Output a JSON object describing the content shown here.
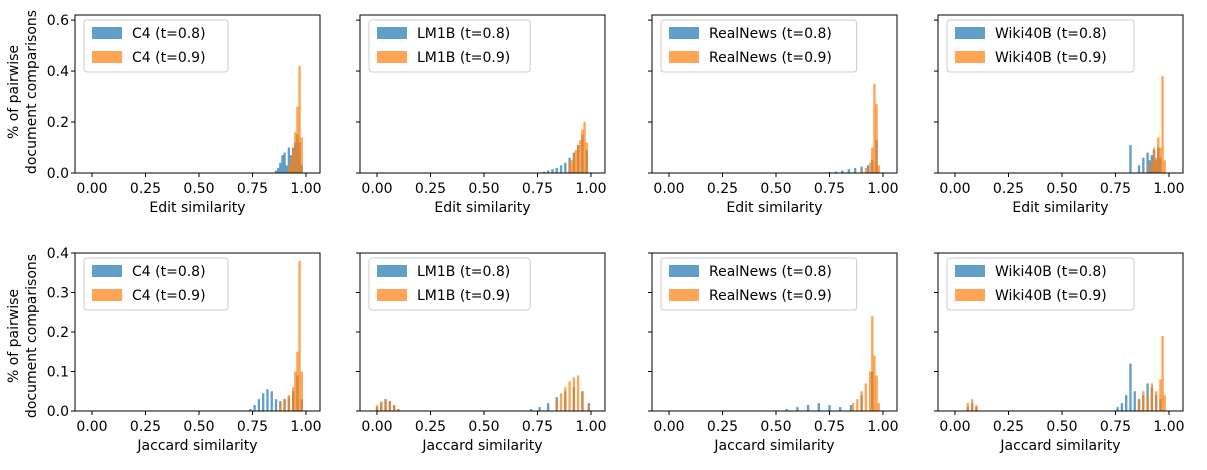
{
  "figure": {
    "ylabel_lines": [
      "% of pairwise",
      "document comparisons"
    ]
  },
  "colors": {
    "t08": "#1f77b4",
    "t09": "#ff7f0e"
  },
  "chart_data": [
    {
      "type": "bar",
      "row": 0,
      "col": 0,
      "xlabel": "Edit similarity",
      "ylabel": "% of pairwise document comparisons",
      "xlim": [
        0,
        1
      ],
      "ylim": [
        0,
        0.62
      ],
      "xticks": [
        "0.00",
        "0.25",
        "0.50",
        "0.75",
        "1.00"
      ],
      "yticks": [
        "0.0",
        "0.2",
        "0.4",
        "0.6"
      ],
      "legend_position": "top-left",
      "series": [
        {
          "name": "C4 (t=0.8)",
          "x": [
            0.86,
            0.87,
            0.88,
            0.89,
            0.9,
            0.91,
            0.92,
            0.93,
            0.94,
            0.95,
            0.96,
            0.97,
            0.98
          ],
          "values": [
            0.01,
            0.02,
            0.04,
            0.07,
            0.08,
            0.03,
            0.1,
            0.07,
            0.1,
            0.12,
            0.15,
            0.12,
            0.03
          ]
        },
        {
          "name": "C4 (t=0.9)",
          "x": [
            0.92,
            0.93,
            0.94,
            0.95,
            0.96,
            0.97,
            0.98
          ],
          "values": [
            0.03,
            0.06,
            0.1,
            0.16,
            0.26,
            0.42,
            0.14
          ]
        }
      ]
    },
    {
      "type": "bar",
      "row": 0,
      "col": 1,
      "xlabel": "Edit similarity",
      "xlim": [
        0,
        1
      ],
      "ylim": [
        0,
        0.62
      ],
      "xticks": [
        "0.00",
        "0.25",
        "0.50",
        "0.75",
        "1.00"
      ],
      "yticks": [
        "0.0",
        "0.2",
        "0.4",
        "0.6"
      ],
      "legend_position": "top-left",
      "series": [
        {
          "name": "LM1B (t=0.8)",
          "x": [
            0.78,
            0.8,
            0.82,
            0.84,
            0.86,
            0.88,
            0.9,
            0.92,
            0.94,
            0.96,
            0.98
          ],
          "values": [
            0.005,
            0.01,
            0.015,
            0.02,
            0.03,
            0.04,
            0.06,
            0.08,
            0.11,
            0.15,
            0.09
          ]
        },
        {
          "name": "LM1B (t=0.9)",
          "x": [
            0.9,
            0.91,
            0.92,
            0.93,
            0.94,
            0.95,
            0.96,
            0.97,
            0.98
          ],
          "values": [
            0.04,
            0.05,
            0.07,
            0.09,
            0.11,
            0.13,
            0.17,
            0.2,
            0.12
          ]
        }
      ]
    },
    {
      "type": "bar",
      "row": 0,
      "col": 2,
      "xlabel": "Edit similarity",
      "xlim": [
        0,
        1
      ],
      "ylim": [
        0,
        0.62
      ],
      "xticks": [
        "0.00",
        "0.25",
        "0.50",
        "0.75",
        "1.00"
      ],
      "yticks": [
        "0.0",
        "0.2",
        "0.4",
        "0.6"
      ],
      "legend_position": "top-left",
      "series": [
        {
          "name": "RealNews (t=0.8)",
          "x": [
            0.72,
            0.75,
            0.78,
            0.81,
            0.84,
            0.87,
            0.9,
            0.93,
            0.95,
            0.97
          ],
          "values": [
            0.002,
            0.004,
            0.006,
            0.01,
            0.015,
            0.02,
            0.025,
            0.03,
            0.05,
            0.13
          ]
        },
        {
          "name": "RealNews (t=0.9)",
          "x": [
            0.9,
            0.92,
            0.94,
            0.95,
            0.96,
            0.97,
            0.98
          ],
          "values": [
            0.01,
            0.02,
            0.04,
            0.1,
            0.35,
            0.27,
            0.03
          ]
        }
      ]
    },
    {
      "type": "bar",
      "row": 0,
      "col": 3,
      "xlabel": "Edit similarity",
      "xlim": [
        0,
        1
      ],
      "ylim": [
        0,
        0.62
      ],
      "xticks": [
        "0.00",
        "0.25",
        "0.50",
        "0.75",
        "1.00"
      ],
      "yticks": [
        "0.0",
        "0.2",
        "0.4",
        "0.6"
      ],
      "legend_position": "top-left",
      "series": [
        {
          "name": "Wiki40B (t=0.8)",
          "x": [
            0.82,
            0.86,
            0.88,
            0.9,
            0.91,
            0.92,
            0.93,
            0.94,
            0.95,
            0.96
          ],
          "values": [
            0.11,
            0.03,
            0.06,
            0.08,
            0.05,
            0.07,
            0.09,
            0.05,
            0.1,
            0.06
          ]
        },
        {
          "name": "Wiki40B (t=0.9)",
          "x": [
            0.9,
            0.92,
            0.93,
            0.94,
            0.95,
            0.96,
            0.97,
            0.98
          ],
          "values": [
            0.03,
            0.05,
            0.1,
            0.06,
            0.14,
            0.1,
            0.38,
            0.05
          ]
        }
      ]
    },
    {
      "type": "bar",
      "row": 1,
      "col": 0,
      "xlabel": "Jaccard similarity",
      "ylabel": "% of pairwise document comparisons",
      "xlim": [
        0,
        1
      ],
      "ylim": [
        0,
        0.4
      ],
      "xticks": [
        "0.00",
        "0.25",
        "0.50",
        "0.75",
        "1.00"
      ],
      "yticks": [
        "0.0",
        "0.1",
        "0.2",
        "0.3",
        "0.4"
      ],
      "legend_position": "top-left",
      "series": [
        {
          "name": "C4 (t=0.8)",
          "x": [
            0.74,
            0.76,
            0.78,
            0.8,
            0.82,
            0.84,
            0.86,
            0.88,
            0.9,
            0.92,
            0.94,
            0.96,
            0.98
          ],
          "values": [
            0.005,
            0.015,
            0.03,
            0.045,
            0.055,
            0.05,
            0.03,
            0.025,
            0.03,
            0.035,
            0.05,
            0.09,
            0.03
          ]
        },
        {
          "name": "C4 (t=0.9)",
          "x": [
            0.88,
            0.9,
            0.92,
            0.94,
            0.95,
            0.96,
            0.97,
            0.98
          ],
          "values": [
            0.02,
            0.03,
            0.04,
            0.06,
            0.1,
            0.15,
            0.38,
            0.1
          ]
        }
      ]
    },
    {
      "type": "bar",
      "row": 1,
      "col": 1,
      "xlabel": "Jaccard similarity",
      "xlim": [
        0,
        1
      ],
      "ylim": [
        0,
        0.4
      ],
      "xticks": [
        "0.00",
        "0.25",
        "0.50",
        "0.75",
        "1.00"
      ],
      "yticks": [
        "0.0",
        "0.1",
        "0.2",
        "0.3",
        "0.4"
      ],
      "legend_position": "top-left",
      "series": [
        {
          "name": "LM1B (t=0.8)",
          "x": [
            0.0,
            0.02,
            0.04,
            0.06,
            0.08,
            0.1,
            0.72,
            0.76,
            0.8,
            0.84,
            0.88,
            0.92,
            0.96,
            0.99
          ],
          "values": [
            0.01,
            0.02,
            0.03,
            0.025,
            0.015,
            0.005,
            0.005,
            0.01,
            0.02,
            0.035,
            0.05,
            0.06,
            0.05,
            0.02
          ]
        },
        {
          "name": "LM1B (t=0.9)",
          "x": [
            0.0,
            0.02,
            0.04,
            0.06,
            0.08,
            0.1,
            0.84,
            0.86,
            0.88,
            0.9,
            0.92,
            0.94,
            0.96,
            0.99
          ],
          "values": [
            0.015,
            0.025,
            0.03,
            0.025,
            0.015,
            0.005,
            0.03,
            0.045,
            0.06,
            0.075,
            0.085,
            0.09,
            0.05,
            0.015
          ]
        }
      ]
    },
    {
      "type": "bar",
      "row": 1,
      "col": 2,
      "xlabel": "Jaccard similarity",
      "xlim": [
        0,
        1
      ],
      "ylim": [
        0,
        0.4
      ],
      "xticks": [
        "0.00",
        "0.25",
        "0.50",
        "0.75",
        "1.00"
      ],
      "yticks": [
        "0.0",
        "0.1",
        "0.2",
        "0.3",
        "0.4"
      ],
      "legend_position": "top-left",
      "series": [
        {
          "name": "RealNews (t=0.8)",
          "x": [
            0.55,
            0.6,
            0.65,
            0.7,
            0.75,
            0.8,
            0.85,
            0.9,
            0.95
          ],
          "values": [
            0.005,
            0.01,
            0.015,
            0.02,
            0.015,
            0.01,
            0.015,
            0.04,
            0.1
          ]
        },
        {
          "name": "RealNews (t=0.9)",
          "x": [
            0.86,
            0.88,
            0.9,
            0.92,
            0.94,
            0.95,
            0.96,
            0.97,
            0.98
          ],
          "values": [
            0.02,
            0.03,
            0.05,
            0.07,
            0.1,
            0.24,
            0.14,
            0.09,
            0.02
          ]
        }
      ]
    },
    {
      "type": "bar",
      "row": 1,
      "col": 3,
      "xlabel": "Jaccard similarity",
      "xlim": [
        0,
        1
      ],
      "ylim": [
        0,
        0.4
      ],
      "xticks": [
        "0.00",
        "0.25",
        "0.50",
        "0.75",
        "1.00"
      ],
      "yticks": [
        "0.0",
        "0.1",
        "0.2",
        "0.3",
        "0.4"
      ],
      "legend_position": "top-left",
      "series": [
        {
          "name": "Wiki40B (t=0.8)",
          "x": [
            0.06,
            0.08,
            0.1,
            0.76,
            0.78,
            0.8,
            0.82,
            0.84,
            0.86,
            0.88,
            0.9,
            0.92,
            0.94,
            0.96
          ],
          "values": [
            0.01,
            0.02,
            0.01,
            0.01,
            0.02,
            0.04,
            0.12,
            0.05,
            0.03,
            0.04,
            0.07,
            0.06,
            0.04,
            0.03
          ]
        },
        {
          "name": "Wiki40B (t=0.9)",
          "x": [
            0.06,
            0.08,
            0.1,
            0.86,
            0.88,
            0.9,
            0.92,
            0.94,
            0.96,
            0.97,
            0.98
          ],
          "values": [
            0.02,
            0.03,
            0.015,
            0.03,
            0.05,
            0.04,
            0.07,
            0.05,
            0.08,
            0.19,
            0.04
          ]
        }
      ]
    }
  ]
}
